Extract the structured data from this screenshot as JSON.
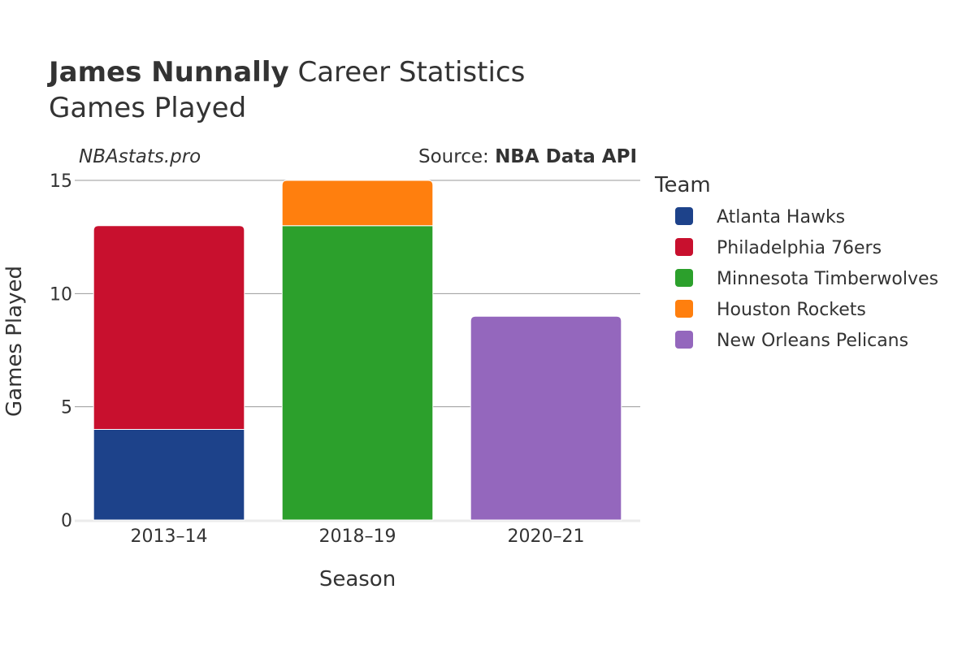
{
  "header": {
    "player_name": "James Nunnally",
    "title_suffix": " Career Statistics",
    "subtitle": "Games Played",
    "watermark": "NBAstats.pro",
    "source_prefix": "Source: ",
    "source_name": "NBA Data API"
  },
  "legend": {
    "title": "Team",
    "placement": "right"
  },
  "chart_data": {
    "type": "bar",
    "stacked": true,
    "categories": [
      "2013–14",
      "2018–19",
      "2020–21"
    ],
    "series": [
      {
        "name": "Atlanta Hawks",
        "color": "#1d428a",
        "values": [
          4,
          0,
          0
        ]
      },
      {
        "name": "Philadelphia 76ers",
        "color": "#c8102e",
        "values": [
          9,
          0,
          0
        ]
      },
      {
        "name": "Minnesota Timberwolves",
        "color": "#2ca02c",
        "values": [
          0,
          13,
          0
        ]
      },
      {
        "name": "Houston Rockets",
        "color": "#ff7f0e",
        "values": [
          0,
          2,
          0
        ]
      },
      {
        "name": "New Orleans Pelicans",
        "color": "#9467bd",
        "values": [
          0,
          0,
          9
        ]
      }
    ],
    "xlabel": "Season",
    "ylabel": "Games Played",
    "ylim": [
      0,
      15
    ],
    "yticks": [
      0,
      5,
      10,
      15
    ],
    "grid": true
  }
}
